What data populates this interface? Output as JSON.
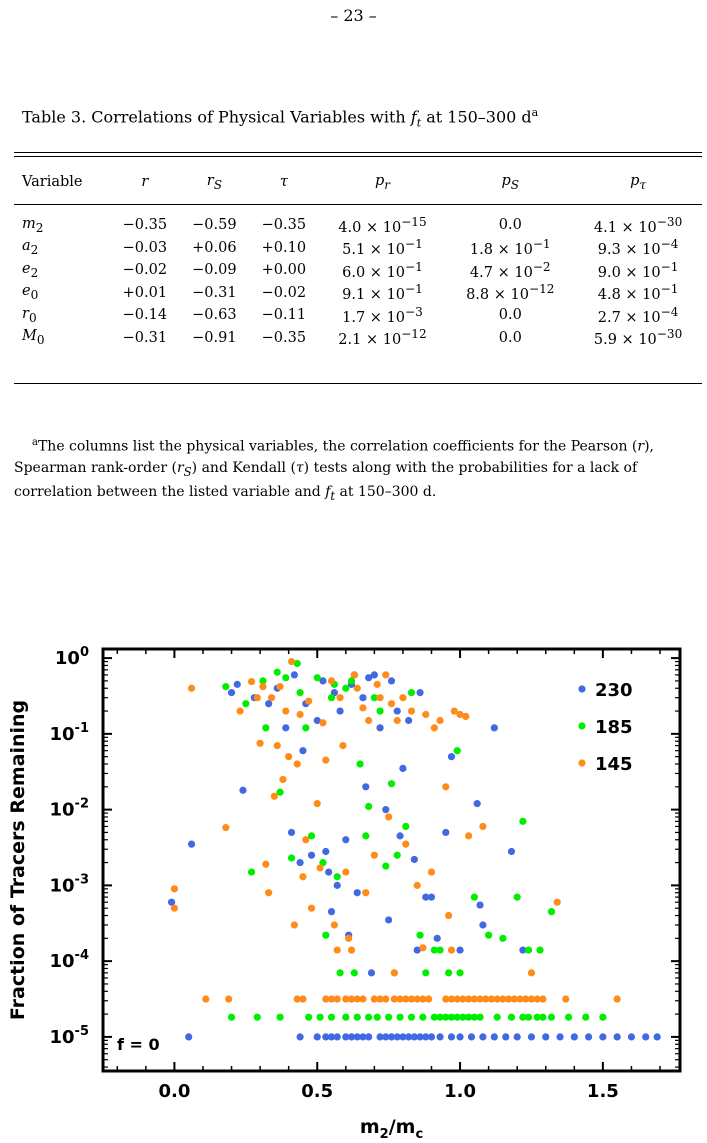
{
  "page_number": "– 23 –",
  "table": {
    "caption": "Table 3.   Correlations of Physical Variables with f_t at 150–300 d",
    "caption_parts": {
      "prefix": "Table 3.   Correlations of Physical Variables with ",
      "var": "f",
      "sub": "t",
      "suffix": " at 150–300 d",
      "note": "a"
    },
    "headers": [
      "Variable",
      "r",
      "r_S",
      "τ",
      "p_r",
      "p_S",
      "p_τ"
    ],
    "rows": [
      [
        "m_2",
        "−0.35",
        "−0.59",
        "−0.35",
        "4.0 × 10^−15",
        "0.0",
        "4.1 × 10^−30"
      ],
      [
        "a_2",
        "−0.03",
        "+0.06",
        "+0.10",
        "5.1 × 10^−1",
        "1.8 × 10^−1",
        "9.3 × 10^−4"
      ],
      [
        "e_2",
        "−0.02",
        "−0.09",
        "+0.00",
        "6.0 × 10^−1",
        "4.7 × 10^−2",
        "9.0 × 10^−1"
      ],
      [
        "e_0",
        "+0.01",
        "−0.31",
        "−0.02",
        "9.1 × 10^−1",
        "8.8 × 10^−12",
        "4.8 × 10^−1"
      ],
      [
        "r_0",
        "−0.14",
        "−0.63",
        "−0.11",
        "1.7 × 10^−3",
        "0.0",
        "2.7 × 10^−4"
      ],
      [
        "M_0",
        "−0.31",
        "−0.91",
        "−0.35",
        "2.1 × 10^−12",
        "0.0",
        "5.9 × 10^−30"
      ]
    ],
    "footnote": "aThe columns list the physical variables, the correlation coefficients for the Pearson (r), Spearman rank-order (r_S) and Kendall (τ) tests along with the probabilities for a lack of correlation between the listed variable and f_t at 150–300 d."
  },
  "chart_data": {
    "type": "scatter",
    "xlabel": "m_2/m_c",
    "ylabel": "Fraction of Tracers Remaining",
    "xlim": [
      -0.25,
      1.77
    ],
    "ylog": true,
    "ylim_exp": [
      -5.45,
      0.12
    ],
    "xticks": [
      "0.0",
      "0.5",
      "1.0",
      "1.5"
    ],
    "xtick_values": [
      0,
      0.5,
      1.0,
      1.5
    ],
    "yticks": [
      "10^0",
      "10^-1",
      "10^-2",
      "10^-3",
      "10^-4",
      "10^-5"
    ],
    "ytick_exps": [
      0,
      -1,
      -2,
      -3,
      -4,
      -5
    ],
    "zero_label": "f = 0",
    "legend_position": "top-right",
    "series": [
      {
        "name": "230",
        "color": "#4169E1",
        "points": [
          [
            -0.01,
            0.0006
          ],
          [
            0.06,
            0.0035
          ],
          [
            0.2,
            0.35
          ],
          [
            0.22,
            0.45
          ],
          [
            0.24,
            0.018
          ],
          [
            0.28,
            0.3
          ],
          [
            0.33,
            0.25
          ],
          [
            0.36,
            0.4
          ],
          [
            0.39,
            0.12
          ],
          [
            0.41,
            0.005
          ],
          [
            0.42,
            0.6
          ],
          [
            0.44,
            0.002
          ],
          [
            0.45,
            0.06
          ],
          [
            0.46,
            0.25
          ],
          [
            0.48,
            0.0025
          ],
          [
            0.5,
            0.15
          ],
          [
            0.52,
            0.5
          ],
          [
            0.53,
            0.0028
          ],
          [
            0.54,
            0.0015
          ],
          [
            0.55,
            0.00045
          ],
          [
            0.56,
            0.35
          ],
          [
            0.57,
            0.001
          ],
          [
            0.58,
            0.2
          ],
          [
            0.6,
            0.004
          ],
          [
            0.61,
            0.00022
          ],
          [
            0.62,
            0.45
          ],
          [
            0.63,
            0.6
          ],
          [
            0.64,
            0.0008
          ],
          [
            0.66,
            0.3
          ],
          [
            0.67,
            0.02
          ],
          [
            0.68,
            0.55
          ],
          [
            0.69,
            7e-05
          ],
          [
            0.7,
            0.6
          ],
          [
            0.72,
            0.12
          ],
          [
            0.74,
            0.01
          ],
          [
            0.75,
            0.00035
          ],
          [
            0.76,
            0.5
          ],
          [
            0.78,
            0.2
          ],
          [
            0.79,
            0.0045
          ],
          [
            0.8,
            0.035
          ],
          [
            0.82,
            0.15
          ],
          [
            0.84,
            0.0022
          ],
          [
            0.85,
            0.00014
          ],
          [
            0.86,
            0.35
          ],
          [
            0.88,
            0.0007
          ],
          [
            0.9,
            0.0007
          ],
          [
            0.92,
            0.0002
          ],
          [
            0.95,
            0.005
          ],
          [
            0.97,
            0.05
          ],
          [
            1.0,
            0.00014
          ],
          [
            1.06,
            0.012
          ],
          [
            1.07,
            0.00055
          ],
          [
            1.08,
            0.0003
          ],
          [
            1.12,
            0.12
          ],
          [
            1.18,
            0.0028
          ],
          [
            1.22,
            0.00014
          ]
        ],
        "zero_x": [
          0.05,
          0.44,
          0.5,
          0.53,
          0.55,
          0.57,
          0.6,
          0.62,
          0.64,
          0.66,
          0.68,
          0.72,
          0.74,
          0.76,
          0.78,
          0.8,
          0.82,
          0.84,
          0.86,
          0.88,
          0.9,
          0.93,
          0.97,
          1.0,
          1.04,
          1.08,
          1.12,
          1.16,
          1.2,
          1.25,
          1.3,
          1.35,
          1.4,
          1.45,
          1.5,
          1.55,
          1.6,
          1.65,
          1.69
        ]
      },
      {
        "name": "185",
        "color": "#00EE00",
        "points": [
          [
            0.18,
            0.42
          ],
          [
            0.25,
            0.25
          ],
          [
            0.27,
            0.0015
          ],
          [
            0.31,
            0.5
          ],
          [
            0.32,
            0.12
          ],
          [
            0.36,
            0.65
          ],
          [
            0.37,
            0.017
          ],
          [
            0.39,
            0.55
          ],
          [
            0.41,
            0.0023
          ],
          [
            0.43,
            0.85
          ],
          [
            0.44,
            0.35
          ],
          [
            0.46,
            0.12
          ],
          [
            0.48,
            0.0045
          ],
          [
            0.5,
            0.55
          ],
          [
            0.52,
            0.002
          ],
          [
            0.53,
            0.00022
          ],
          [
            0.55,
            0.3
          ],
          [
            0.56,
            0.45
          ],
          [
            0.57,
            0.0013
          ],
          [
            0.58,
            7e-05
          ],
          [
            0.6,
            0.4
          ],
          [
            0.62,
            0.5
          ],
          [
            0.63,
            7e-05
          ],
          [
            0.65,
            0.04
          ],
          [
            0.67,
            0.0045
          ],
          [
            0.68,
            0.011
          ],
          [
            0.7,
            0.3
          ],
          [
            0.72,
            0.2
          ],
          [
            0.74,
            0.0018
          ],
          [
            0.76,
            0.022
          ],
          [
            0.77,
            7e-05
          ],
          [
            0.78,
            0.0025
          ],
          [
            0.81,
            0.006
          ],
          [
            0.83,
            0.35
          ],
          [
            0.86,
            0.00022
          ],
          [
            0.88,
            7e-05
          ],
          [
            0.91,
            0.00014
          ],
          [
            0.93,
            0.00014
          ],
          [
            0.96,
            7e-05
          ],
          [
            0.99,
            0.06
          ],
          [
            1.0,
            7e-05
          ],
          [
            1.05,
            0.0007
          ],
          [
            1.1,
            0.00022
          ],
          [
            1.15,
            0.0002
          ],
          [
            1.2,
            0.0007
          ],
          [
            1.22,
            0.007
          ],
          [
            1.24,
            0.00014
          ],
          [
            1.28,
            0.00014
          ],
          [
            1.32,
            0.00045
          ]
        ],
        "zero_x": [
          0.2,
          0.29,
          0.37,
          0.47,
          0.51,
          0.55,
          0.6,
          0.64,
          0.68,
          0.71,
          0.75,
          0.79,
          0.83,
          0.87,
          0.91,
          0.93,
          0.95,
          0.97,
          0.99,
          1.01,
          1.03,
          1.05,
          1.07,
          1.13,
          1.18,
          1.22,
          1.24,
          1.27,
          1.29,
          1.32,
          1.38,
          1.44,
          1.5
        ]
      },
      {
        "name": "145",
        "color": "#FF8C1A",
        "points": [
          [
            0.0,
            0.0009
          ],
          [
            0.0,
            0.0005
          ],
          [
            0.06,
            0.4
          ],
          [
            0.18,
            0.0058
          ],
          [
            0.23,
            0.2
          ],
          [
            0.27,
            0.49
          ],
          [
            0.29,
            0.3
          ],
          [
            0.3,
            0.075
          ],
          [
            0.31,
            0.42
          ],
          [
            0.32,
            0.0019
          ],
          [
            0.33,
            0.0008
          ],
          [
            0.34,
            0.3
          ],
          [
            0.35,
            0.015
          ],
          [
            0.36,
            0.07
          ],
          [
            0.37,
            0.42
          ],
          [
            0.38,
            0.025
          ],
          [
            0.39,
            0.2
          ],
          [
            0.4,
            0.05
          ],
          [
            0.41,
            0.9
          ],
          [
            0.42,
            0.0003
          ],
          [
            0.43,
            0.04
          ],
          [
            0.44,
            0.18
          ],
          [
            0.45,
            0.0013
          ],
          [
            0.46,
            0.004
          ],
          [
            0.47,
            0.27
          ],
          [
            0.48,
            0.0005
          ],
          [
            0.5,
            0.012
          ],
          [
            0.51,
            0.0017
          ],
          [
            0.52,
            0.14
          ],
          [
            0.53,
            0.045
          ],
          [
            0.55,
            0.5
          ],
          [
            0.56,
            0.0003
          ],
          [
            0.57,
            0.00014
          ],
          [
            0.58,
            0.3
          ],
          [
            0.59,
            0.07
          ],
          [
            0.6,
            0.0015
          ],
          [
            0.61,
            0.0002
          ],
          [
            0.62,
            0.00014
          ],
          [
            0.63,
            0.6
          ],
          [
            0.64,
            0.4
          ],
          [
            0.66,
            0.22
          ],
          [
            0.67,
            0.0008
          ],
          [
            0.68,
            0.15
          ],
          [
            0.7,
            0.0025
          ],
          [
            0.71,
            0.45
          ],
          [
            0.72,
            0.3
          ],
          [
            0.74,
            0.6
          ],
          [
            0.75,
            0.008
          ],
          [
            0.76,
            0.25
          ],
          [
            0.77,
            7e-05
          ],
          [
            0.78,
            0.15
          ],
          [
            0.8,
            0.3
          ],
          [
            0.81,
            0.0035
          ],
          [
            0.83,
            0.2
          ],
          [
            0.85,
            0.001
          ],
          [
            0.87,
            0.00015
          ],
          [
            0.88,
            0.18
          ],
          [
            0.9,
            0.0015
          ],
          [
            0.91,
            0.12
          ],
          [
            0.93,
            0.15
          ],
          [
            0.95,
            0.02
          ],
          [
            0.96,
            0.0004
          ],
          [
            0.97,
            0.00014
          ],
          [
            0.98,
            0.2
          ],
          [
            1.0,
            0.18
          ],
          [
            1.02,
            0.17
          ],
          [
            1.03,
            0.0045
          ],
          [
            1.08,
            0.006
          ],
          [
            1.25,
            7e-05
          ],
          [
            1.34,
            0.0006
          ]
        ],
        "zero_x": [
          0.11,
          0.19,
          0.43,
          0.45,
          0.53,
          0.55,
          0.57,
          0.6,
          0.62,
          0.64,
          0.66,
          0.7,
          0.72,
          0.74,
          0.77,
          0.79,
          0.81,
          0.83,
          0.85,
          0.87,
          0.89,
          0.95,
          0.97,
          0.99,
          1.01,
          1.03,
          1.05,
          1.07,
          1.09,
          1.11,
          1.13,
          1.15,
          1.17,
          1.19,
          1.21,
          1.23,
          1.25,
          1.27,
          1.29,
          1.37,
          1.55
        ]
      }
    ]
  }
}
